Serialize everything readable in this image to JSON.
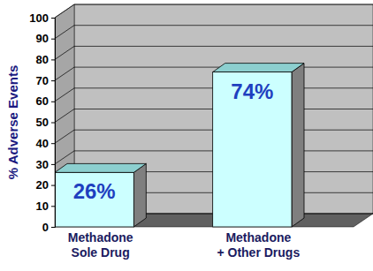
{
  "chart_data": {
    "type": "bar",
    "y_label": "% Adverse Events",
    "categories": [
      "Methadone\nSole Drug",
      "Methadone\n+ Other Drugs"
    ],
    "values": [
      26,
      74
    ],
    "value_labels": [
      "26%",
      "74%"
    ],
    "color": "#ccffff",
    "ylim": [
      0,
      100
    ],
    "yticks": [
      0,
      10,
      20,
      30,
      40,
      50,
      60,
      70,
      80,
      90,
      100
    ],
    "grid": true,
    "data_labels": true
  }
}
